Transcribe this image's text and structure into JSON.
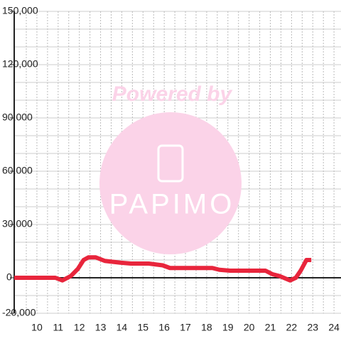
{
  "chart_data": {
    "type": "line",
    "watermark": {
      "top": "Powered by",
      "brand": "PAPIMO"
    },
    "x": [
      8.93,
      10.87,
      11.2,
      11.6,
      11.93,
      12.2,
      12.43,
      12.77,
      13.2,
      13.93,
      14.43,
      15.27,
      15.93,
      16.27,
      18.27,
      18.6,
      19.1,
      20.77,
      21.1,
      21.43,
      21.93,
      22.2,
      22.43,
      22.7,
      22.93
    ],
    "series": [
      {
        "color": "#e8253c",
        "values": [
          0,
          0,
          -1500,
          1000,
          5000,
          10000,
          11500,
          11500,
          9500,
          8500,
          8000,
          8000,
          7000,
          5500,
          5500,
          4500,
          4000,
          4000,
          2000,
          1000,
          -1500,
          0,
          4000,
          10000,
          10000
        ]
      }
    ],
    "xlim": [
      8.93,
      24.33
    ],
    "xticks": [
      10,
      11,
      12,
      13,
      14,
      15,
      16,
      17,
      18,
      19,
      20,
      21,
      22,
      23,
      24
    ],
    "minor_xticks": [
      9.5,
      10,
      10.5,
      11,
      11.5,
      12,
      12.5,
      13,
      13.5,
      14,
      14.5,
      15,
      15.5,
      16,
      16.5,
      17,
      17.5,
      18,
      18.5,
      19,
      19.5,
      20,
      20.5,
      21,
      21.5,
      22,
      22.5,
      23,
      23.5,
      24
    ],
    "ylim": [
      -20000,
      150000
    ],
    "yticks": [
      {
        "value": -20000,
        "label": "-20,000"
      },
      0,
      {
        "value": 30000,
        "label": "30,000"
      },
      {
        "value": 60000,
        "label": "60,000"
      },
      {
        "value": 90000,
        "label": "90,000"
      },
      {
        "value": 120000,
        "label": "120,000"
      },
      {
        "value": 150000,
        "label": "150,000"
      }
    ],
    "minor_yticks": [
      -20000,
      -10000,
      10000,
      20000,
      40000,
      50000,
      70000,
      80000,
      100000,
      110000,
      130000,
      140000,
      150000
    ],
    "grid": true
  }
}
